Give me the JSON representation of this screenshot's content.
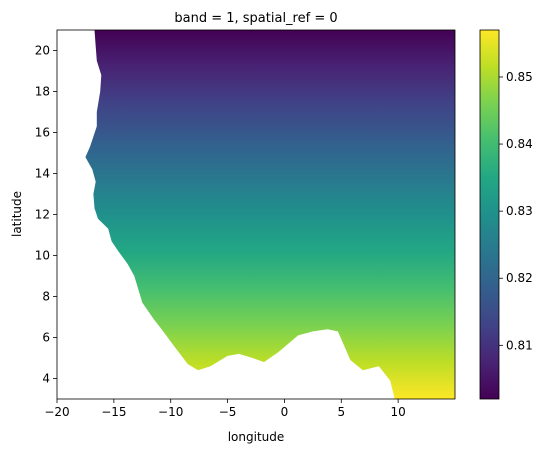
{
  "chart_data": {
    "type": "heatmap",
    "title": "band = 1, spatial_ref = 0",
    "xlabel": "longitude",
    "ylabel": "latitude",
    "xlim": [
      -20,
      15
    ],
    "ylim": [
      3,
      21
    ],
    "x_ticks": [
      -20,
      -15,
      -10,
      -5,
      0,
      5,
      10
    ],
    "y_ticks": [
      4,
      6,
      8,
      10,
      12,
      14,
      16,
      18,
      20
    ],
    "x_tick_labels": [
      "−20",
      "−15",
      "−10",
      "−5",
      "0",
      "5",
      "10"
    ],
    "y_tick_labels": [
      "4",
      "6",
      "8",
      "10",
      "12",
      "14",
      "16",
      "18",
      "20"
    ],
    "colormap": "viridis",
    "colorbar": {
      "vmin": 0.802,
      "vmax": 0.857,
      "ticks": [
        0.81,
        0.82,
        0.83,
        0.84,
        0.85
      ],
      "tick_labels": [
        "0.81",
        "0.82",
        "0.83",
        "0.84",
        "0.85"
      ]
    },
    "value_gradient": {
      "direction": "latitude",
      "value_at_lat_3": 0.857,
      "value_at_lat_21": 0.802
    },
    "grid": false,
    "no_data_color": "#ffffff",
    "land_coastline": [
      [
        -16.7,
        21.0
      ],
      [
        -16.6,
        20.2
      ],
      [
        -16.5,
        19.5
      ],
      [
        -16.1,
        18.8
      ],
      [
        -16.2,
        18.0
      ],
      [
        -16.5,
        17.0
      ],
      [
        -16.5,
        16.3
      ],
      [
        -17.1,
        15.3
      ],
      [
        -17.5,
        14.8
      ],
      [
        -16.9,
        14.2
      ],
      [
        -16.6,
        13.6
      ],
      [
        -16.8,
        13.0
      ],
      [
        -16.7,
        12.3
      ],
      [
        -16.4,
        11.8
      ],
      [
        -15.5,
        11.3
      ],
      [
        -15.2,
        10.7
      ],
      [
        -14.6,
        10.2
      ],
      [
        -13.8,
        9.6
      ],
      [
        -13.2,
        9.0
      ],
      [
        -12.5,
        7.7
      ],
      [
        -11.5,
        6.9
      ],
      [
        -10.8,
        6.4
      ],
      [
        -9.6,
        5.5
      ],
      [
        -8.5,
        4.7
      ],
      [
        -7.6,
        4.4
      ],
      [
        -6.5,
        4.6
      ],
      [
        -5.0,
        5.1
      ],
      [
        -4.0,
        5.2
      ],
      [
        -2.8,
        5.0
      ],
      [
        -1.8,
        4.8
      ],
      [
        -0.5,
        5.3
      ],
      [
        1.2,
        6.1
      ],
      [
        2.5,
        6.3
      ],
      [
        3.8,
        6.4
      ],
      [
        4.7,
        6.3
      ],
      [
        5.8,
        4.9
      ],
      [
        6.9,
        4.4
      ],
      [
        8.3,
        4.6
      ],
      [
        9.3,
        3.9
      ],
      [
        9.7,
        3.0
      ],
      [
        15.0,
        3.0
      ],
      [
        15.0,
        21.0
      ]
    ]
  }
}
